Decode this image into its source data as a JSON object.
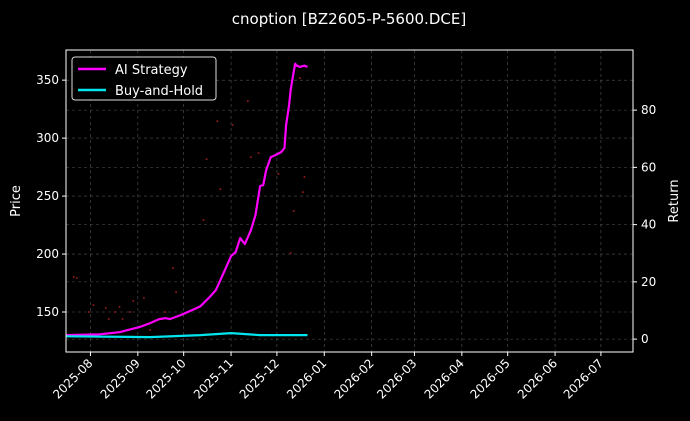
{
  "chart_data": {
    "type": "line",
    "title": "cnoption [BZ2605-P-5600.DCE]",
    "ylabel": "Price",
    "y2label": "Return",
    "xlim": [
      "2025-07-16",
      "2026-07-22"
    ],
    "ylim": [
      115.5,
      376
    ],
    "y2lim": [
      -4.5,
      101
    ],
    "grid": true,
    "legend_placement": "top-left",
    "x_ticks": [
      "2025-08",
      "2025-09",
      "2025-10",
      "2025-11",
      "2025-12",
      "2026-01",
      "2026-02",
      "2026-03",
      "2026-04",
      "2026-05",
      "2026-06",
      "2026-07"
    ],
    "y_ticks": [
      150,
      200,
      250,
      300,
      350
    ],
    "y2_ticks": [
      0,
      20,
      40,
      60,
      80
    ],
    "series": [
      {
        "name": "AI Strategy",
        "axis": "right",
        "color": "#ff00ff",
        "x": [
          "2025-07-16",
          "2025-08-07",
          "2025-08-20",
          "2025-09-02",
          "2025-09-09",
          "2025-09-15",
          "2025-09-19",
          "2025-09-22",
          "2025-09-29",
          "2025-10-05",
          "2025-10-12",
          "2025-10-18",
          "2025-10-22",
          "2025-10-25",
          "2025-10-28",
          "2025-11-01",
          "2025-11-04",
          "2025-11-07",
          "2025-11-10",
          "2025-11-14",
          "2025-11-17",
          "2025-11-20",
          "2025-11-22",
          "2025-11-24",
          "2025-11-27",
          "2025-11-30",
          "2025-12-04",
          "2025-12-06",
          "2025-12-07",
          "2025-12-09",
          "2025-12-10",
          "2025-12-12",
          "2025-12-13",
          "2025-12-14",
          "2025-12-16",
          "2025-12-19",
          "2025-12-21"
        ],
        "values": [
          1.4,
          1.7,
          2.4,
          4.2,
          5.6,
          7,
          7.3,
          7,
          8.4,
          9.8,
          11.5,
          14.7,
          17.1,
          20.6,
          24.1,
          29,
          30.4,
          35.3,
          33.2,
          38,
          43.4,
          53.5,
          53.8,
          59.1,
          63.6,
          64.3,
          65.4,
          66.8,
          74.8,
          81.8,
          87.1,
          93.4,
          96.2,
          95.5,
          95.1,
          95.5,
          95.1
        ]
      },
      {
        "name": "Buy-and-Hold",
        "axis": "right",
        "color": "#00e5ee",
        "x": [
          "2025-07-16",
          "2025-09-09",
          "2025-10-12",
          "2025-11-01",
          "2025-11-20",
          "2025-12-21"
        ],
        "values": [
          1,
          0.7,
          1.4,
          2.1,
          1.4,
          1.4
        ]
      }
    ],
    "scatter": {
      "axis": "left",
      "color": "#8b1a1a",
      "x": [
        "2025-07-21",
        "2025-07-23",
        "2025-08-03",
        "2025-07-31",
        "2025-08-11",
        "2025-08-13",
        "2025-08-17",
        "2025-08-20",
        "2025-08-22",
        "2025-08-27",
        "2025-08-29",
        "2025-09-05",
        "2025-09-09",
        "2025-09-19",
        "2025-09-24",
        "2025-09-26",
        "2025-12-10",
        "2025-11-12",
        "2025-10-23",
        "2025-11-02",
        "2025-10-16",
        "2025-11-14",
        "2025-11-19",
        "2025-10-25",
        "2025-12-02",
        "2025-12-19",
        "2025-12-18",
        "2025-12-12",
        "2025-10-14",
        "2025-12-16"
      ],
      "values": [
        180.2,
        179.3,
        156,
        150,
        153.4,
        144,
        150,
        154.3,
        144,
        150,
        159.5,
        162.1,
        134.5,
        150,
        187.9,
        167.2,
        200.9,
        331.9,
        314.7,
        311.2,
        281.9,
        283.6,
        287.1,
        256,
        269,
        266.4,
        253.4,
        237.1,
        229.3,
        351.7
      ]
    }
  }
}
